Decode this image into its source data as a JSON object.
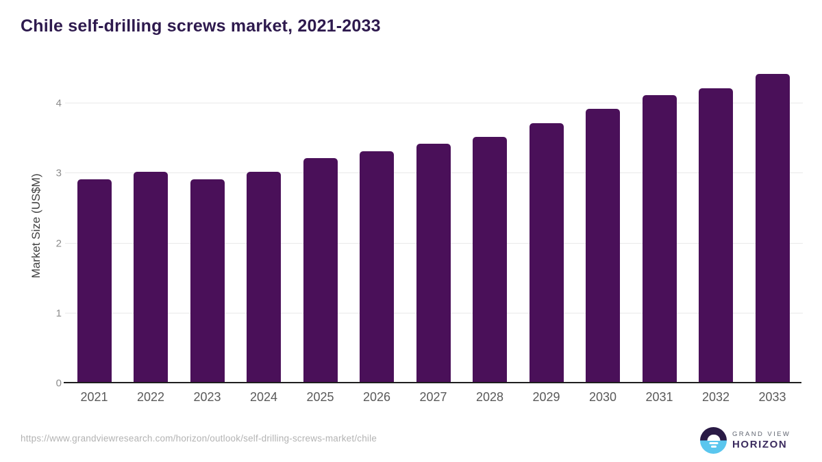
{
  "header": {
    "title": "Chile self-drilling screws market, 2021-2033"
  },
  "chart_data": {
    "type": "bar",
    "title": "Chile self-drilling screws market, 2021-2033",
    "categories": [
      "2021",
      "2022",
      "2023",
      "2024",
      "2025",
      "2026",
      "2027",
      "2028",
      "2029",
      "2030",
      "2031",
      "2032",
      "2033"
    ],
    "values": [
      2.9,
      3.0,
      2.9,
      3.0,
      3.2,
      3.3,
      3.4,
      3.5,
      3.7,
      3.9,
      4.1,
      4.2,
      4.4
    ],
    "xlabel": "",
    "ylabel": "Market Size (US$M)",
    "ylim": [
      0,
      4.5
    ],
    "yticks": [
      0,
      1,
      2,
      3,
      4
    ],
    "grid": true,
    "legend": "none",
    "bar_color": "#4a1059"
  },
  "footer": {
    "source_url": "https://www.grandviewresearch.com/horizon/outlook/self-drilling-screws-market/chile",
    "logo": {
      "line1": "GRAND VIEW",
      "line2": "HORIZON"
    }
  },
  "colors": {
    "title_text": "#2e1a4e",
    "bar": "#4a1059",
    "axis_line": "#1f1f1f",
    "gridline": "#e9e9e9",
    "tick_text": "#8c8c8c",
    "xtick_text": "#595959",
    "url_text": "#b3b3b3",
    "logo_dark": "#2a1a45",
    "logo_blue": "#5ac6ee"
  }
}
